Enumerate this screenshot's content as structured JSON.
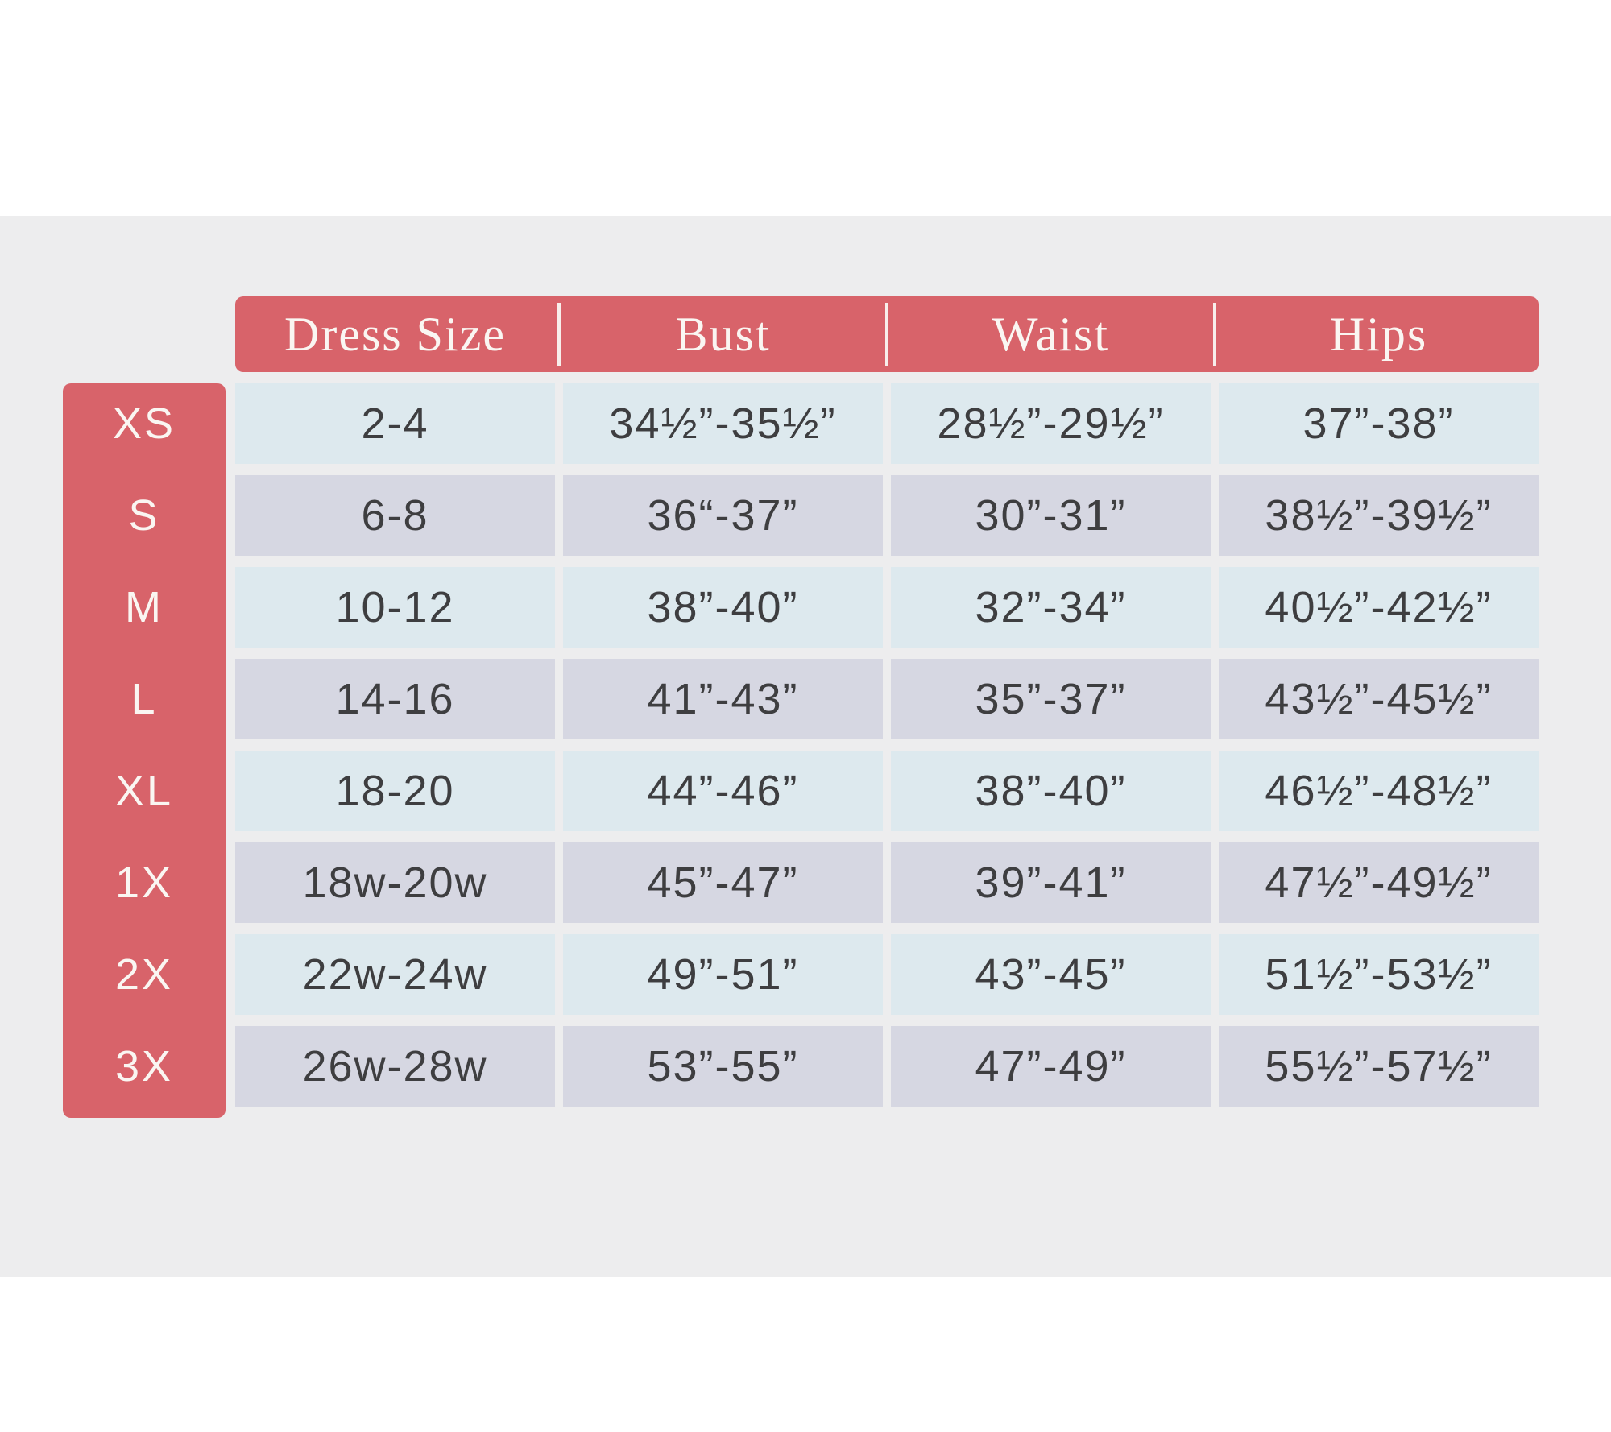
{
  "chart_data": {
    "type": "table",
    "columns": [
      "Dress Size",
      "Bust",
      "Waist",
      "Hips"
    ],
    "row_labels": [
      "XS",
      "S",
      "M",
      "L",
      "XL",
      "1X",
      "2X",
      "3X"
    ],
    "rows": [
      {
        "label": "XS",
        "dress_size": "2-4",
        "bust": "34½”-35½”",
        "waist": "28½”-29½”",
        "hips": "37”-38”"
      },
      {
        "label": "S",
        "dress_size": "6-8",
        "bust": "36“-37”",
        "waist": "30”-31”",
        "hips": "38½”-39½”"
      },
      {
        "label": "M",
        "dress_size": "10-12",
        "bust": "38”-40”",
        "waist": "32”-34”",
        "hips": "40½”-42½”"
      },
      {
        "label": "L",
        "dress_size": "14-16",
        "bust": "41”-43”",
        "waist": "35”-37”",
        "hips": "43½”-45½”"
      },
      {
        "label": "XL",
        "dress_size": "18-20",
        "bust": "44”-46”",
        "waist": "38”-40”",
        "hips": "46½”-48½”"
      },
      {
        "label": "1X",
        "dress_size": "18w-20w",
        "bust": "45”-47”",
        "waist": "39”-41”",
        "hips": "47½”-49½”"
      },
      {
        "label": "2X",
        "dress_size": "22w-24w",
        "bust": "49”-51”",
        "waist": "43”-45”",
        "hips": "51½”-53½”"
      },
      {
        "label": "3X",
        "dress_size": "26w-28w",
        "bust": "53”-55”",
        "waist": "47”-49”",
        "hips": "55½”-57½”"
      }
    ],
    "layout_hints": {
      "row_striping": [
        "row_blue",
        "row_lavender"
      ],
      "grid": "cells separated by background-colored gaps",
      "header_separators": "inset white vertical lines"
    },
    "colors": {
      "accent_red": "#d8636a",
      "row_blue": "#dde9ee",
      "row_lavender": "#d6d7e2",
      "background_gray": "#ededee",
      "cell_text": "#3e3e40",
      "header_text": "#faf6f2"
    }
  }
}
